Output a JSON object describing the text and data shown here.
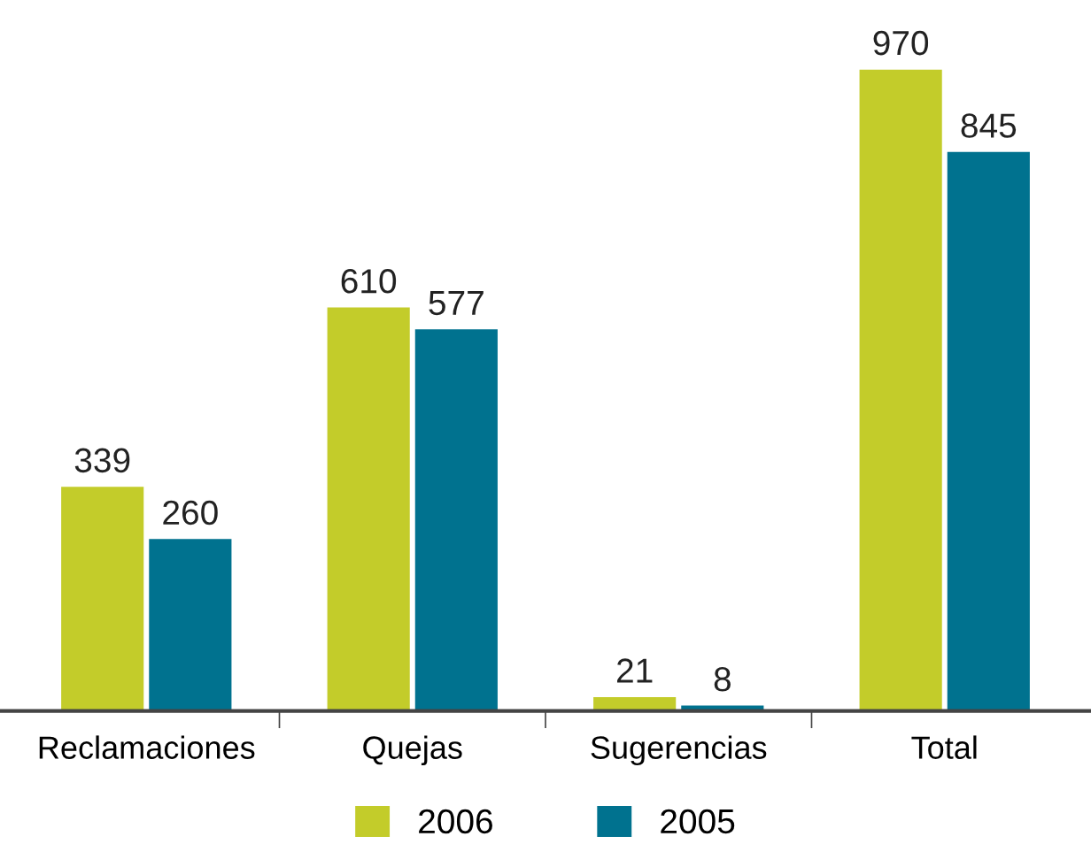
{
  "chart_data": {
    "type": "bar",
    "categories": [
      "Reclamaciones",
      "Quejas",
      "Sugerencias",
      "Total"
    ],
    "series": [
      {
        "name": "2006",
        "color": "#c3cc2a",
        "values": [
          339,
          610,
          21,
          970
        ]
      },
      {
        "name": "2005",
        "color": "#00728f",
        "values": [
          260,
          577,
          8,
          845
        ]
      }
    ],
    "data_labels": true,
    "legend": "bottom",
    "grid": false,
    "tick_labels": "x"
  }
}
